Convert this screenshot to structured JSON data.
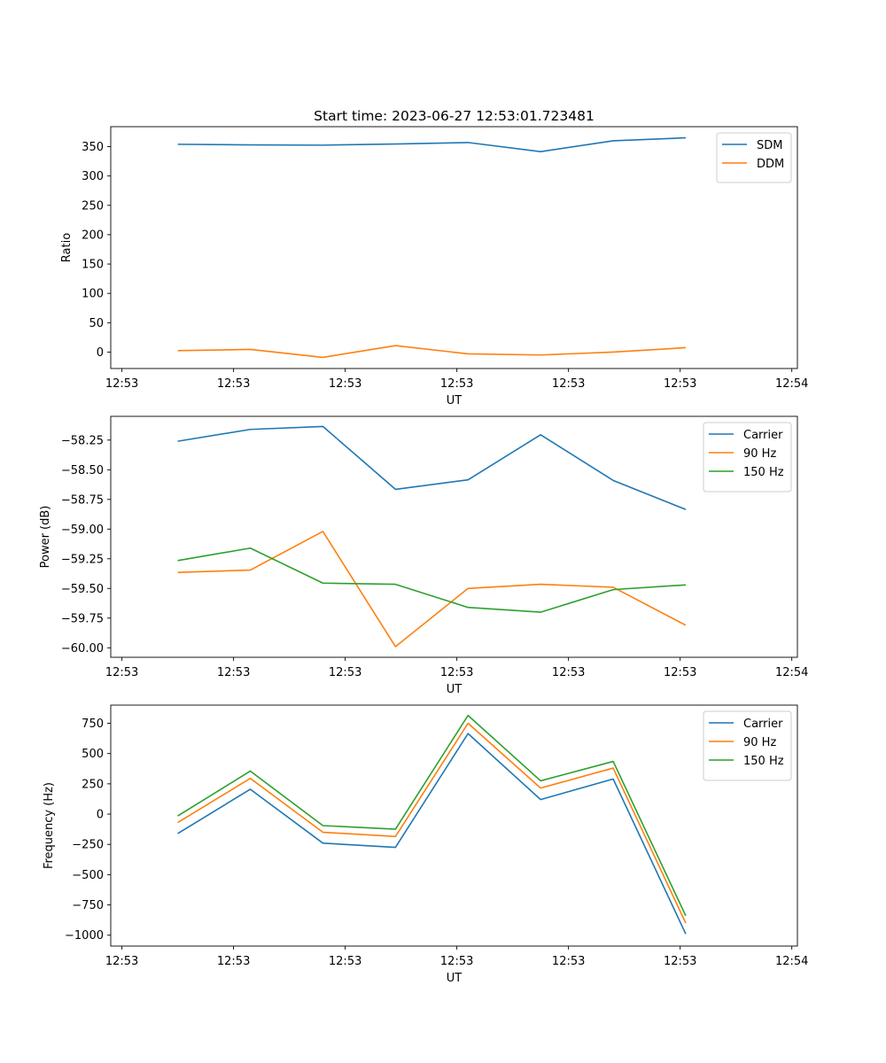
{
  "figure_title": "Start time: 2023-06-27 12:53:01.723481",
  "colors": {
    "blue": "#1f77b4",
    "orange": "#ff7f0e",
    "green": "#2ca02c"
  },
  "chart_data": [
    {
      "type": "line",
      "title": "Start time: 2023-06-27 12:53:01.723481",
      "xlabel": "UT",
      "ylabel": "Ratio",
      "x": [
        0.5,
        1.15,
        1.8,
        2.45,
        3.1,
        3.75,
        4.4,
        5.05
      ],
      "xlim": [
        -0.1,
        6.05
      ],
      "x_ticks": [
        0,
        1,
        2,
        3,
        4,
        5,
        6
      ],
      "x_tick_labels": [
        "12:53",
        "12:53",
        "12:53",
        "12:53",
        "12:53",
        "12:53",
        "12:54"
      ],
      "ylim": [
        -28,
        384
      ],
      "y_ticks": [
        0,
        50,
        100,
        150,
        200,
        250,
        300,
        350
      ],
      "y_tick_labels": [
        "0",
        "50",
        "100",
        "150",
        "200",
        "250",
        "300",
        "350"
      ],
      "legend_position": "top-right",
      "series": [
        {
          "name": "SDM",
          "color": "#1f77b4",
          "values": [
            354,
            353,
            352.5,
            354.5,
            357,
            341.5,
            360,
            365
          ]
        },
        {
          "name": "DDM",
          "color": "#ff7f0e",
          "values": [
            2.5,
            4.5,
            -9,
            11,
            -3,
            -5,
            0,
            7.5
          ]
        }
      ]
    },
    {
      "type": "line",
      "xlabel": "UT",
      "ylabel": "Power (dB)",
      "x": [
        0.5,
        1.15,
        1.8,
        2.45,
        3.1,
        3.75,
        4.4,
        5.05
      ],
      "xlim": [
        -0.1,
        6.05
      ],
      "x_ticks": [
        0,
        1,
        2,
        3,
        4,
        5,
        6
      ],
      "x_tick_labels": [
        "12:53",
        "12:53",
        "12:53",
        "12:53",
        "12:53",
        "12:53",
        "12:54"
      ],
      "ylim": [
        -60.08,
        -58.05
      ],
      "y_ticks": [
        -60.0,
        -59.75,
        -59.5,
        -59.25,
        -59.0,
        -58.75,
        -58.5,
        -58.25
      ],
      "y_tick_labels": [
        "−60.00",
        "−59.75",
        "−59.50",
        "−59.25",
        "−59.00",
        "−58.75",
        "−58.50",
        "−58.25"
      ],
      "legend_position": "top-right",
      "series": [
        {
          "name": "Carrier",
          "color": "#1f77b4",
          "values": [
            -58.26,
            -58.16,
            -58.135,
            -58.665,
            -58.585,
            -58.205,
            -58.59,
            -58.835
          ]
        },
        {
          "name": "90 Hz",
          "color": "#ff7f0e",
          "values": [
            -59.365,
            -59.345,
            -59.02,
            -59.99,
            -59.5,
            -59.465,
            -59.49,
            -59.81
          ]
        },
        {
          "name": "150 Hz",
          "color": "#2ca02c",
          "values": [
            -59.265,
            -59.16,
            -59.455,
            -59.465,
            -59.66,
            -59.7,
            -59.51,
            -59.47
          ]
        }
      ]
    },
    {
      "type": "line",
      "xlabel": "UT",
      "ylabel": "Frequency (Hz)",
      "x": [
        0.5,
        1.15,
        1.8,
        2.45,
        3.1,
        3.75,
        4.4,
        5.05
      ],
      "xlim": [
        -0.1,
        6.05
      ],
      "x_ticks": [
        0,
        1,
        2,
        3,
        4,
        5,
        6
      ],
      "x_tick_labels": [
        "12:53",
        "12:53",
        "12:53",
        "12:53",
        "12:53",
        "12:53",
        "12:54"
      ],
      "ylim": [
        -1090,
        900
      ],
      "y_ticks": [
        -1000,
        -750,
        -500,
        -250,
        0,
        250,
        500,
        750
      ],
      "y_tick_labels": [
        "−1000",
        "−750",
        "−500",
        "−250",
        "0",
        "250",
        "500",
        "750"
      ],
      "legend_position": "top-right",
      "series": [
        {
          "name": "Carrier",
          "color": "#1f77b4",
          "values": [
            -160,
            205,
            -240,
            -275,
            665,
            120,
            290,
            -990
          ]
        },
        {
          "name": "90 Hz",
          "color": "#ff7f0e",
          "values": [
            -70,
            295,
            -150,
            -185,
            750,
            215,
            380,
            -900
          ]
        },
        {
          "name": "150 Hz",
          "color": "#2ca02c",
          "values": [
            -15,
            355,
            -95,
            -125,
            815,
            275,
            435,
            -840
          ]
        }
      ]
    }
  ]
}
